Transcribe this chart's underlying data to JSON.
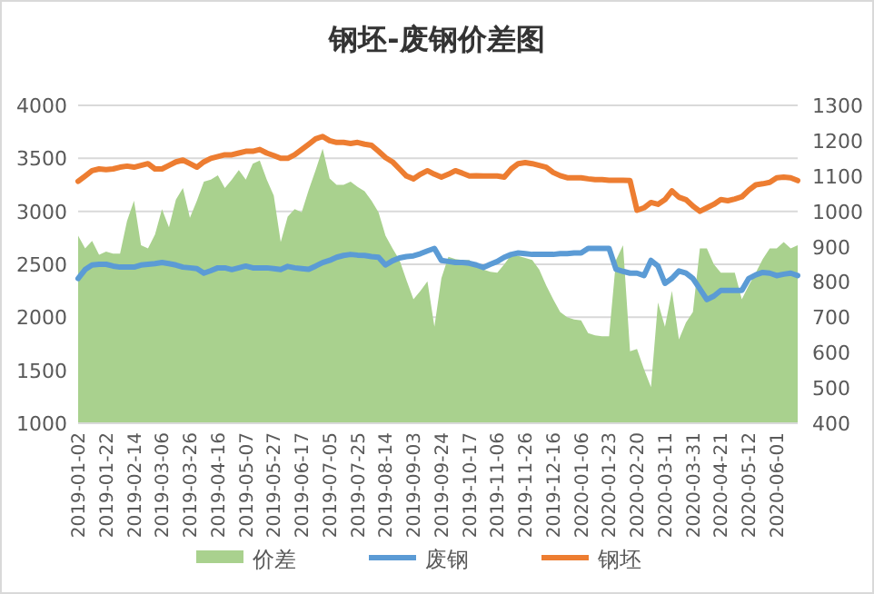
{
  "chart_data": {
    "type": "line",
    "title": "钢坯-废钢价差图",
    "categories": [
      "2019-01-02",
      null,
      null,
      null,
      "2019-01-22",
      null,
      null,
      null,
      "2019-02-14",
      null,
      null,
      null,
      "2019-03-06",
      null,
      null,
      null,
      "2019-03-26",
      null,
      null,
      null,
      "2019-04-16",
      null,
      null,
      null,
      "2019-05-07",
      null,
      null,
      null,
      "2019-05-27",
      null,
      null,
      null,
      "2019-06-17",
      null,
      null,
      null,
      "2019-07-05",
      null,
      null,
      null,
      "2019-07-25",
      null,
      null,
      null,
      "2019-08-14",
      null,
      null,
      null,
      "2019-09-03",
      null,
      null,
      null,
      "2019-09-24",
      null,
      null,
      null,
      "2019-10-17",
      null,
      null,
      null,
      "2019-11-06",
      null,
      null,
      null,
      "2019-11-26",
      null,
      null,
      null,
      "2019-12-16",
      null,
      null,
      null,
      "2020-01-06",
      null,
      null,
      null,
      "2020-01-23",
      null,
      null,
      null,
      "2020-02-20",
      null,
      null,
      null,
      "2020-03-11",
      null,
      null,
      null,
      "2020-03-31",
      null,
      null,
      null,
      "2020-04-21",
      null,
      null,
      null,
      "2020-05-12",
      null,
      null,
      null,
      "2020-06-01",
      null,
      null,
      null
    ],
    "series": [
      {
        "name": "价差",
        "type": "area",
        "color": "#a9d18e",
        "values": [
          2770,
          2650,
          2720,
          2590,
          2620,
          2600,
          2600,
          2910,
          3100,
          2680,
          2650,
          2780,
          3020,
          2850,
          3110,
          3220,
          2940,
          3100,
          3280,
          3300,
          3340,
          3220,
          3300,
          3390,
          3300,
          3450,
          3480,
          3300,
          3150,
          2710,
          2950,
          3020,
          2990,
          3200,
          3390,
          3590,
          3310,
          3250,
          3250,
          3280,
          3230,
          3190,
          3100,
          2990,
          2770,
          2650,
          2540,
          2350,
          2170,
          2250,
          2340,
          1910,
          2370,
          2570,
          2550,
          2540,
          2540,
          2480,
          2450,
          2430,
          2420,
          2500,
          2590,
          2580,
          2560,
          2540,
          2450,
          2300,
          2170,
          2050,
          2000,
          1980,
          1970,
          1850,
          1830,
          1820,
          1820,
          2540,
          2680,
          1680,
          1700,
          1510,
          1340,
          2140,
          1910,
          2250,
          1790,
          1950,
          2050,
          2650,
          2650,
          2500,
          2420,
          2420,
          2420,
          2170,
          2300,
          2420,
          2550,
          2650,
          2650,
          2710,
          2650,
          2680
        ]
      },
      {
        "name": "废钢",
        "axis": "y2",
        "color": "#5b9bd5",
        "values": [
          810,
          835,
          848,
          850,
          850,
          845,
          842,
          842,
          842,
          848,
          850,
          852,
          855,
          852,
          848,
          842,
          840,
          838,
          825,
          832,
          840,
          840,
          835,
          840,
          845,
          840,
          840,
          840,
          838,
          835,
          844,
          840,
          838,
          836,
          845,
          855,
          861,
          870,
          875,
          878,
          876,
          875,
          872,
          870,
          848,
          860,
          868,
          872,
          874,
          880,
          888,
          895,
          861,
          858,
          855,
          855,
          853,
          848,
          841,
          850,
          858,
          870,
          878,
          882,
          880,
          878,
          878,
          878,
          878,
          880,
          880,
          882,
          882,
          895,
          895,
          895,
          895,
          836,
          830,
          825,
          825,
          818,
          861,
          845,
          796,
          810,
          831,
          825,
          810,
          780,
          750,
          760,
          776,
          776,
          776,
          776,
          810,
          820,
          827,
          825,
          818,
          822,
          825,
          818
        ]
      },
      {
        "name": "钢坯",
        "axis": "y2",
        "color": "#ed7d31",
        "values": [
          1085,
          1100,
          1115,
          1120,
          1118,
          1120,
          1125,
          1128,
          1125,
          1130,
          1135,
          1120,
          1120,
          1130,
          1140,
          1145,
          1135,
          1125,
          1140,
          1150,
          1155,
          1160,
          1160,
          1165,
          1170,
          1170,
          1175,
          1165,
          1158,
          1150,
          1150,
          1160,
          1175,
          1190,
          1205,
          1212,
          1200,
          1195,
          1195,
          1192,
          1195,
          1190,
          1187,
          1170,
          1152,
          1140,
          1120,
          1100,
          1092,
          1105,
          1115,
          1105,
          1097,
          1105,
          1115,
          1108,
          1100,
          1101,
          1100,
          1100,
          1100,
          1097,
          1120,
          1135,
          1138,
          1135,
          1130,
          1125,
          1110,
          1101,
          1095,
          1095,
          1095,
          1092,
          1090,
          1090,
          1088,
          1088,
          1088,
          1087,
          1003,
          1010,
          1025,
          1020,
          1033,
          1058,
          1040,
          1033,
          1015,
          1000,
          1010,
          1020,
          1033,
          1030,
          1035,
          1041,
          1060,
          1075,
          1078,
          1082,
          1095,
          1097,
          1095,
          1087
        ]
      }
    ],
    "ylim": [
      1000,
      4000
    ],
    "yticks": [
      1000,
      1500,
      2000,
      2500,
      3000,
      3500,
      4000
    ],
    "y2lim": [
      400,
      1300
    ],
    "y2ticks": [
      400,
      500,
      600,
      700,
      800,
      900,
      1000,
      1100,
      1200,
      1300
    ],
    "grid": "y",
    "legend": "bottom"
  }
}
